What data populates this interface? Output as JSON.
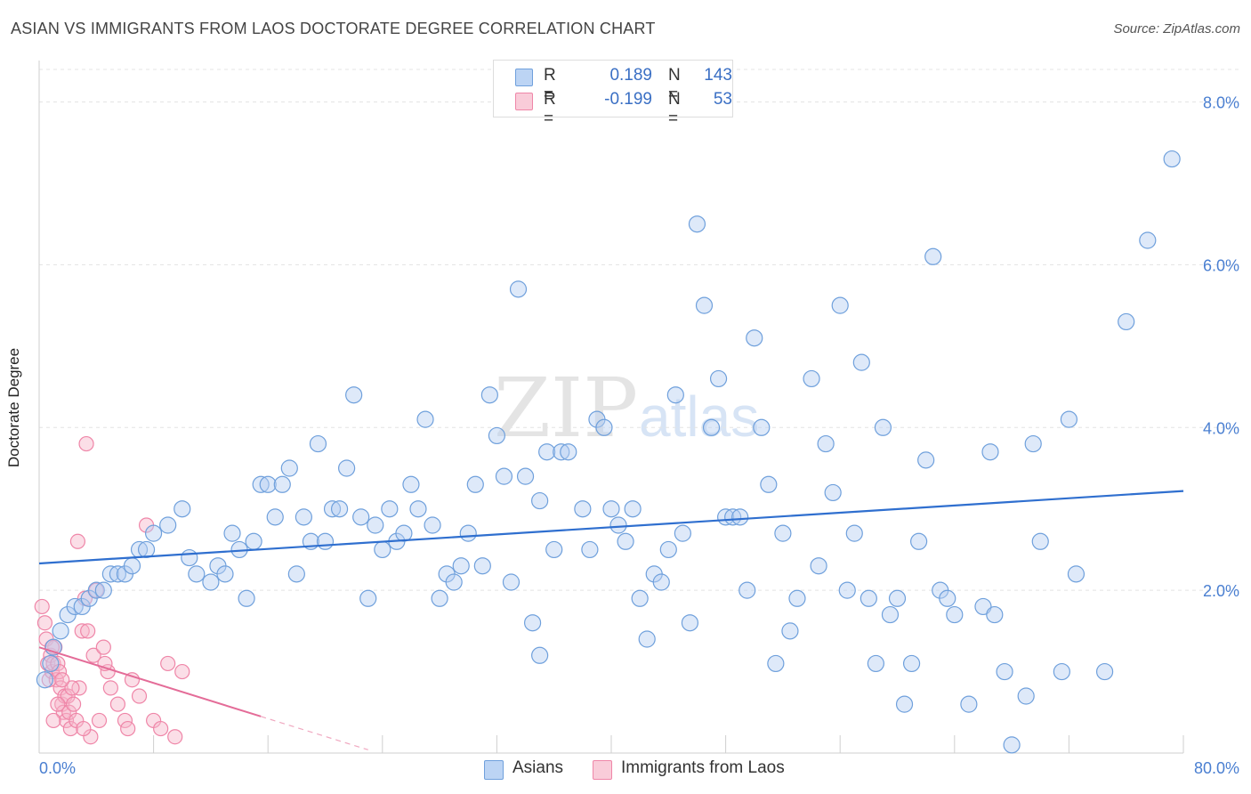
{
  "title": "ASIAN VS IMMIGRANTS FROM LAOS DOCTORATE DEGREE CORRELATION CHART",
  "source": "Source: ZipAtlas.com",
  "watermark": {
    "zip": "ZIP",
    "atlas": "atlas"
  },
  "legend_top": {
    "rows": [
      {
        "r_label": "R =",
        "r_value": "0.189",
        "n_label": "N =",
        "n_value": "143",
        "color": "#a9c8f0"
      },
      {
        "r_label": "R =",
        "r_value": "-0.199",
        "n_label": "N =",
        "n_value": "53",
        "color": "#f7b8cb"
      }
    ]
  },
  "legend_bottom": [
    {
      "label": "Asians",
      "color": "#a9c8f0"
    },
    {
      "label": "Immigrants from Laos",
      "color": "#f7b8cb"
    }
  ],
  "colors": {
    "blue": "#6fa0dc",
    "blue_line": "#2f6fcf",
    "pink": "#ef86a8",
    "pink_line": "#e46c98",
    "tick_text": "#4a7fd1"
  },
  "chart_data": {
    "type": "scatter",
    "title": "ASIAN VS IMMIGRANTS FROM LAOS DOCTORATE DEGREE CORRELATION CHART",
    "xlabel": "",
    "ylabel": "Doctorate Degree",
    "xlim": [
      0,
      80
    ],
    "ylim": [
      0,
      8.4
    ],
    "x_tick_labels": [
      "0.0%",
      "80.0%"
    ],
    "y_ticks": [
      2,
      4,
      6,
      8
    ],
    "y_tick_labels": [
      "2.0%",
      "4.0%",
      "6.0%",
      "8.0%"
    ],
    "grid": true,
    "legend_position": "top-center",
    "series": [
      {
        "name": "Asians",
        "trend": {
          "x": [
            0,
            80
          ],
          "y": [
            2.33,
            3.22
          ]
        },
        "points": [
          [
            0.4,
            0.9
          ],
          [
            0.8,
            1.1
          ],
          [
            1.0,
            1.3
          ],
          [
            1.5,
            1.5
          ],
          [
            2.0,
            1.7
          ],
          [
            2.5,
            1.8
          ],
          [
            3.0,
            1.8
          ],
          [
            3.5,
            1.9
          ],
          [
            4.0,
            2.0
          ],
          [
            4.5,
            2.0
          ],
          [
            5.0,
            2.2
          ],
          [
            5.5,
            2.2
          ],
          [
            6.0,
            2.2
          ],
          [
            6.5,
            2.3
          ],
          [
            7.0,
            2.5
          ],
          [
            7.5,
            2.5
          ],
          [
            8.0,
            2.7
          ],
          [
            9.0,
            2.8
          ],
          [
            10.0,
            3.0
          ],
          [
            10.5,
            2.4
          ],
          [
            11.0,
            2.2
          ],
          [
            12.0,
            2.1
          ],
          [
            12.5,
            2.3
          ],
          [
            13.0,
            2.2
          ],
          [
            13.5,
            2.7
          ],
          [
            14.0,
            2.5
          ],
          [
            14.5,
            1.9
          ],
          [
            15.0,
            2.6
          ],
          [
            15.5,
            3.3
          ],
          [
            16.0,
            3.3
          ],
          [
            16.5,
            2.9
          ],
          [
            17.0,
            3.3
          ],
          [
            17.5,
            3.5
          ],
          [
            18.0,
            2.2
          ],
          [
            18.5,
            2.9
          ],
          [
            19.0,
            2.6
          ],
          [
            19.5,
            3.8
          ],
          [
            20.0,
            2.6
          ],
          [
            20.5,
            3.0
          ],
          [
            21.0,
            3.0
          ],
          [
            21.5,
            3.5
          ],
          [
            22.0,
            4.4
          ],
          [
            22.5,
            2.9
          ],
          [
            23.0,
            1.9
          ],
          [
            23.5,
            2.8
          ],
          [
            24.0,
            2.5
          ],
          [
            24.5,
            3.0
          ],
          [
            25.0,
            2.6
          ],
          [
            25.5,
            2.7
          ],
          [
            26.0,
            3.3
          ],
          [
            26.5,
            3.0
          ],
          [
            27.0,
            4.1
          ],
          [
            27.5,
            2.8
          ],
          [
            28.0,
            1.9
          ],
          [
            28.5,
            2.2
          ],
          [
            29.0,
            2.1
          ],
          [
            29.5,
            2.3
          ],
          [
            30.0,
            2.7
          ],
          [
            30.5,
            3.3
          ],
          [
            31.0,
            2.3
          ],
          [
            31.5,
            4.4
          ],
          [
            32.0,
            3.9
          ],
          [
            32.5,
            3.4
          ],
          [
            33.0,
            2.1
          ],
          [
            33.5,
            5.7
          ],
          [
            34.0,
            3.4
          ],
          [
            34.5,
            1.6
          ],
          [
            35.0,
            3.1
          ],
          [
            35.5,
            3.7
          ],
          [
            35.0,
            1.2
          ],
          [
            36.0,
            2.5
          ],
          [
            36.5,
            3.7
          ],
          [
            37.0,
            3.7
          ],
          [
            38.0,
            3.0
          ],
          [
            38.5,
            2.5
          ],
          [
            39.0,
            4.1
          ],
          [
            39.5,
            4.0
          ],
          [
            40.0,
            3.0
          ],
          [
            40.5,
            2.8
          ],
          [
            41.0,
            2.6
          ],
          [
            41.5,
            3.0
          ],
          [
            42.0,
            1.9
          ],
          [
            42.5,
            1.4
          ],
          [
            43.0,
            2.2
          ],
          [
            43.5,
            2.1
          ],
          [
            44.0,
            2.5
          ],
          [
            44.5,
            4.4
          ],
          [
            45.0,
            2.7
          ],
          [
            45.5,
            1.6
          ],
          [
            46.0,
            6.5
          ],
          [
            46.5,
            5.5
          ],
          [
            47.0,
            4.0
          ],
          [
            47.5,
            4.6
          ],
          [
            48.0,
            2.9
          ],
          [
            48.5,
            2.9
          ],
          [
            49.0,
            2.9
          ],
          [
            49.5,
            2.0
          ],
          [
            50.0,
            5.1
          ],
          [
            50.5,
            4.0
          ],
          [
            51.0,
            3.3
          ],
          [
            51.5,
            1.1
          ],
          [
            52.0,
            2.7
          ],
          [
            52.5,
            1.5
          ],
          [
            53.0,
            1.9
          ],
          [
            54.0,
            4.6
          ],
          [
            54.5,
            2.3
          ],
          [
            55.0,
            3.8
          ],
          [
            55.5,
            3.2
          ],
          [
            56.0,
            5.5
          ],
          [
            56.5,
            2.0
          ],
          [
            57.0,
            2.7
          ],
          [
            57.5,
            4.8
          ],
          [
            58.0,
            1.9
          ],
          [
            58.5,
            1.1
          ],
          [
            59.0,
            4.0
          ],
          [
            59.5,
            1.7
          ],
          [
            60.0,
            1.9
          ],
          [
            60.5,
            0.6
          ],
          [
            61.0,
            1.1
          ],
          [
            61.5,
            2.6
          ],
          [
            62.0,
            3.6
          ],
          [
            62.5,
            6.1
          ],
          [
            63.0,
            2.0
          ],
          [
            63.5,
            1.9
          ],
          [
            64.0,
            1.7
          ],
          [
            65.0,
            0.6
          ],
          [
            66.0,
            1.8
          ],
          [
            66.5,
            3.7
          ],
          [
            66.8,
            1.7
          ],
          [
            67.5,
            1.0
          ],
          [
            68.0,
            0.1
          ],
          [
            69.0,
            0.7
          ],
          [
            69.5,
            3.8
          ],
          [
            70.0,
            2.6
          ],
          [
            71.5,
            1.0
          ],
          [
            72.0,
            4.1
          ],
          [
            72.5,
            2.2
          ],
          [
            74.5,
            1.0
          ],
          [
            76.0,
            5.3
          ],
          [
            77.5,
            6.3
          ],
          [
            79.2,
            7.3
          ]
        ]
      },
      {
        "name": "Immigrants from Laos",
        "trend": {
          "x": [
            0,
            15.5
          ],
          "y": [
            1.3,
            0.45
          ]
        },
        "trend_dashed": {
          "x": [
            15.5,
            23
          ],
          "y": [
            0.45,
            0.04
          ]
        },
        "points": [
          [
            0.2,
            1.8
          ],
          [
            0.4,
            1.6
          ],
          [
            0.5,
            1.4
          ],
          [
            0.6,
            1.1
          ],
          [
            0.7,
            0.9
          ],
          [
            0.8,
            1.2
          ],
          [
            0.9,
            1.0
          ],
          [
            1.0,
            1.1
          ],
          [
            1.1,
            1.3
          ],
          [
            1.2,
            0.9
          ],
          [
            1.3,
            1.1
          ],
          [
            1.4,
            1.0
          ],
          [
            1.5,
            0.8
          ],
          [
            1.6,
            0.6
          ],
          [
            1.7,
            0.5
          ],
          [
            1.8,
            0.7
          ],
          [
            1.9,
            0.4
          ],
          [
            2.0,
            0.7
          ],
          [
            2.1,
            0.5
          ],
          [
            2.2,
            0.3
          ],
          [
            2.4,
            0.6
          ],
          [
            2.6,
            0.4
          ],
          [
            2.8,
            0.8
          ],
          [
            3.0,
            1.5
          ],
          [
            3.2,
            1.9
          ],
          [
            3.4,
            1.5
          ],
          [
            3.6,
            0.2
          ],
          [
            3.8,
            1.2
          ],
          [
            4.0,
            2.0
          ],
          [
            4.2,
            0.4
          ],
          [
            4.5,
            1.3
          ],
          [
            4.8,
            1.0
          ],
          [
            5.0,
            0.8
          ],
          [
            5.5,
            0.6
          ],
          [
            6.0,
            0.4
          ],
          [
            6.2,
            0.3
          ],
          [
            6.5,
            0.9
          ],
          [
            7.0,
            0.7
          ],
          [
            7.5,
            2.8
          ],
          [
            8.0,
            0.4
          ],
          [
            8.5,
            0.3
          ],
          [
            9.0,
            1.1
          ],
          [
            9.5,
            0.2
          ],
          [
            10.0,
            1.0
          ],
          [
            2.7,
            2.6
          ],
          [
            3.3,
            3.8
          ],
          [
            1.3,
            0.6
          ],
          [
            0.9,
            1.3
          ],
          [
            2.3,
            0.8
          ],
          [
            1.0,
            0.4
          ],
          [
            4.6,
            1.1
          ],
          [
            3.1,
            0.3
          ],
          [
            1.6,
            0.9
          ]
        ]
      }
    ]
  }
}
